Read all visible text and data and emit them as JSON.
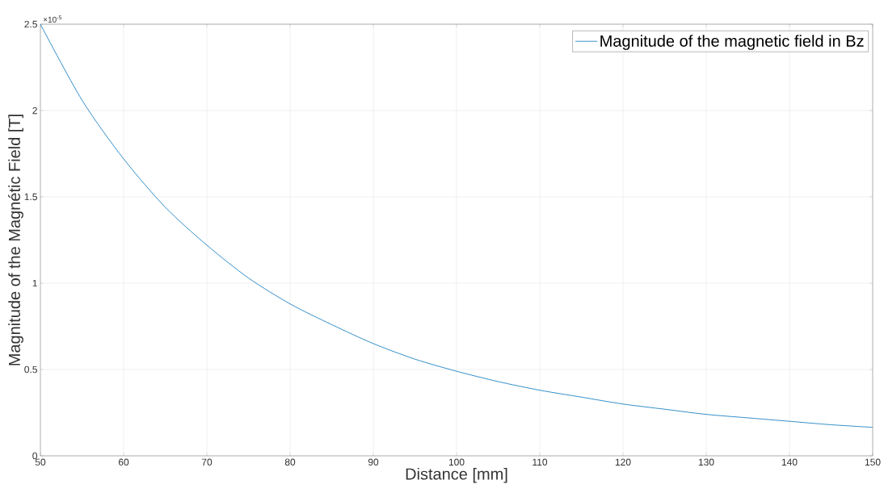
{
  "chart_data": {
    "type": "line",
    "xlabel": "Distance [mm]",
    "ylabel": "Magnitude of the Magnétic Field [T]",
    "annotations": [
      "×10$^{-5}$"
    ],
    "x": [
      50,
      55,
      60,
      65,
      70,
      75,
      80,
      85,
      90,
      95,
      100,
      105,
      110,
      115,
      120,
      125,
      130,
      135,
      140,
      145,
      150
    ],
    "series": [
      {
        "name": "Magnitude of the magnetic field in Bz",
        "color": "#0072bd",
        "values": [
          2.5,
          2.06,
          1.72,
          1.44,
          1.22,
          1.03,
          0.88,
          0.76,
          0.65,
          0.56,
          0.49,
          0.43,
          0.38,
          0.34,
          0.3,
          0.27,
          0.24,
          0.22,
          0.2,
          0.18,
          0.165
        ]
      }
    ],
    "xlim": [
      50,
      150
    ],
    "xticks": [
      50,
      60,
      70,
      80,
      90,
      100,
      110,
      120,
      130,
      140,
      150
    ],
    "ylim": [
      0,
      2.5
    ],
    "yticks": [
      0,
      0.5,
      1,
      1.5,
      2,
      2.5
    ],
    "grid": true,
    "legend": "top right",
    "marker": "none",
    "line_style": "solid"
  }
}
